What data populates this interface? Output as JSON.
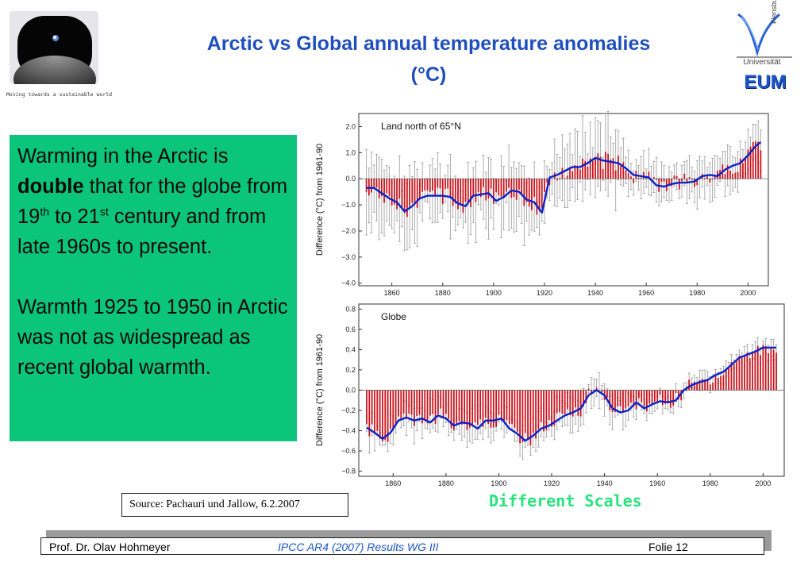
{
  "header": {
    "title_line1": "Arctic vs Global annual temperature anomalies",
    "title_line2": "(°C)",
    "logo_caption": "Moving towards a sustainable world",
    "uni_name": "Universität",
    "uni_city": "Flensburg",
    "eum": "EUM"
  },
  "body": {
    "para1_a": "Warming in the Arctic is ",
    "para1_bold": "double",
    "para1_b": " that for the globe from 19",
    "para1_sup1": "th",
    "para1_c": " to 21",
    "para1_sup2": "st",
    "para1_d": " century and from late 1960s to present.",
    "para2": "Warmth 1925 to 1950 in Arctic was not as widespread as recent global warmth."
  },
  "source": "Source: Pachauri und Jallow, 6.2.2007",
  "different_scales": "Different Scales",
  "footer": {
    "author": "Prof. Dr. Olav Hohmeyer",
    "subtitle": "IPCC AR4 (2007) Results WG III",
    "slide": "Folie 12"
  },
  "colors": {
    "title": "#1f4fbf",
    "green_box": "#0bc57a",
    "bars": "#c8141c",
    "smooth_line": "#0b22c8",
    "different_scales": "#27e57d"
  },
  "chart_data": [
    {
      "type": "bar",
      "panel_label": "Land north of 65°N",
      "ylabel": "Difference  (°C) from 1961-90",
      "xlim": [
        1847,
        2008
      ],
      "ylim": [
        -4.1,
        2.5
      ],
      "xticks": [
        1860,
        1880,
        1900,
        1920,
        1940,
        1960,
        1980,
        2000
      ],
      "yticks": [
        -4.0,
        -3.0,
        -2.0,
        -1.0,
        0.0,
        1.0,
        2.0
      ],
      "ytick_labels": [
        "−4.0",
        "−3.0",
        "−2.0",
        "−1.0",
        "0.0",
        "1.0",
        "2.0"
      ],
      "smooth": {
        "x": [
          1850,
          1853,
          1856,
          1859,
          1862,
          1865,
          1868,
          1871,
          1874,
          1877,
          1880,
          1883,
          1886,
          1889,
          1892,
          1895,
          1898,
          1901,
          1904,
          1907,
          1910,
          1913,
          1916,
          1919,
          1922,
          1925,
          1928,
          1931,
          1934,
          1937,
          1940,
          1943,
          1946,
          1949,
          1952,
          1955,
          1958,
          1961,
          1964,
          1967,
          1970,
          1973,
          1976,
          1979,
          1982,
          1985,
          1988,
          1991,
          1994,
          1997,
          2000,
          2003,
          2005
        ],
        "y": [
          -0.35,
          -0.35,
          -0.55,
          -0.75,
          -0.9,
          -1.25,
          -1.05,
          -0.75,
          -0.65,
          -0.65,
          -0.65,
          -0.7,
          -0.95,
          -1.05,
          -0.65,
          -0.6,
          -0.55,
          -0.85,
          -0.7,
          -0.45,
          -0.5,
          -0.8,
          -0.9,
          -1.3,
          0.05,
          0.15,
          0.3,
          0.45,
          0.45,
          0.6,
          0.8,
          0.7,
          0.65,
          0.6,
          0.4,
          0.15,
          0.1,
          0.05,
          -0.25,
          -0.3,
          -0.2,
          -0.15,
          -0.15,
          -0.1,
          0.1,
          0.15,
          0.1,
          0.35,
          0.5,
          0.6,
          0.9,
          1.25,
          1.4
        ]
      }
    },
    {
      "type": "bar",
      "panel_label": "Globe",
      "ylabel": "Difference (°C) from 1961-90",
      "xlim": [
        1847,
        2008
      ],
      "ylim": [
        -0.85,
        0.85
      ],
      "xticks": [
        1860,
        1880,
        1900,
        1920,
        1940,
        1960,
        1980,
        2000
      ],
      "yticks": [
        -0.8,
        -0.6,
        -0.4,
        -0.2,
        0.0,
        0.2,
        0.4,
        0.6,
        0.8
      ],
      "ytick_labels": [
        "−0.8",
        "−0.6",
        "−0.4",
        "−0.2",
        "0.0",
        "0.2",
        "0.4",
        "0.6",
        "0.8"
      ],
      "smooth": {
        "x": [
          1850,
          1853,
          1856,
          1859,
          1862,
          1865,
          1868,
          1871,
          1874,
          1877,
          1880,
          1883,
          1886,
          1889,
          1892,
          1895,
          1898,
          1901,
          1904,
          1907,
          1910,
          1913,
          1916,
          1919,
          1922,
          1925,
          1928,
          1931,
          1934,
          1937,
          1940,
          1943,
          1946,
          1949,
          1952,
          1955,
          1958,
          1961,
          1964,
          1967,
          1970,
          1973,
          1976,
          1979,
          1982,
          1985,
          1988,
          1991,
          1994,
          1997,
          2000,
          2003,
          2005
        ],
        "y": [
          -0.37,
          -0.42,
          -0.48,
          -0.42,
          -0.3,
          -0.27,
          -0.3,
          -0.28,
          -0.32,
          -0.25,
          -0.28,
          -0.35,
          -0.32,
          -0.33,
          -0.38,
          -0.3,
          -0.3,
          -0.28,
          -0.38,
          -0.43,
          -0.5,
          -0.45,
          -0.38,
          -0.35,
          -0.3,
          -0.25,
          -0.22,
          -0.18,
          -0.05,
          0.0,
          -0.05,
          -0.18,
          -0.22,
          -0.2,
          -0.12,
          -0.18,
          -0.14,
          -0.11,
          -0.12,
          -0.1,
          0.0,
          0.05,
          0.08,
          0.1,
          0.15,
          0.18,
          0.25,
          0.32,
          0.35,
          0.38,
          0.42,
          0.42,
          0.42
        ]
      }
    }
  ]
}
